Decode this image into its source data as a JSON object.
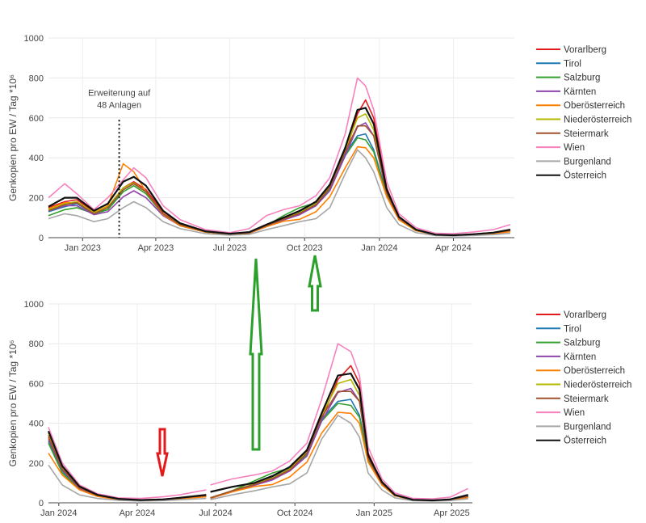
{
  "chart_data": [
    {
      "type": "line",
      "title": "",
      "ylabel": "Genkopien pro EW / Tag *10⁶",
      "ylim": [
        0,
        1000
      ],
      "yticks": [
        "0",
        "200",
        "400",
        "600",
        "800",
        "1000"
      ],
      "xlim": [
        "2022-11-20",
        "2024-06-15"
      ],
      "xticks": [
        {
          "date": "2023-01-01",
          "label": "Jan 2023"
        },
        {
          "date": "2023-04-01",
          "label": "Apr 2023"
        },
        {
          "date": "2023-07-01",
          "label": "Jul 2023"
        },
        {
          "date": "2023-10-01",
          "label": "Oct 2023"
        },
        {
          "date": "2024-01-01",
          "label": "Jan 2024"
        },
        {
          "date": "2024-04-01",
          "label": "Apr 2024"
        }
      ],
      "annotation": {
        "line1": "Erweiterung auf",
        "line2": "48 Anlagen",
        "date": "2023-02-15"
      },
      "legend_position": "right",
      "grid": true,
      "x_dates": [
        "2022-11-20",
        "2022-12-10",
        "2022-12-25",
        "2023-01-15",
        "2023-02-01",
        "2023-02-20",
        "2023-03-05",
        "2023-03-20",
        "2023-04-10",
        "2023-05-01",
        "2023-06-01",
        "2023-07-01",
        "2023-07-25",
        "2023-08-15",
        "2023-09-05",
        "2023-09-25",
        "2023-10-15",
        "2023-11-01",
        "2023-11-20",
        "2023-12-05",
        "2023-12-15",
        "2023-12-25",
        "2024-01-10",
        "2024-01-25",
        "2024-02-15",
        "2024-03-10",
        "2024-04-01",
        "2024-04-25",
        "2024-05-20",
        "2024-06-10"
      ],
      "series": [
        {
          "name": "Vorarlberg",
          "color": "#e31a1c",
          "values": [
            150,
            180,
            190,
            130,
            150,
            250,
            280,
            240,
            130,
            70,
            30,
            20,
            25,
            60,
            90,
            120,
            160,
            240,
            420,
            620,
            690,
            600,
            250,
            100,
            40,
            15,
            12,
            18,
            25,
            40
          ]
        },
        {
          "name": "Tirol",
          "color": "#1f78b4",
          "values": [
            130,
            155,
            170,
            120,
            140,
            240,
            270,
            230,
            120,
            65,
            30,
            18,
            25,
            60,
            95,
            130,
            170,
            250,
            420,
            510,
            520,
            440,
            220,
            95,
            38,
            14,
            12,
            16,
            22,
            35
          ]
        },
        {
          "name": "Salzburg",
          "color": "#33a02c",
          "values": [
            110,
            140,
            150,
            120,
            140,
            230,
            260,
            220,
            115,
            60,
            28,
            18,
            25,
            60,
            110,
            150,
            175,
            240,
            410,
            500,
            490,
            430,
            210,
            90,
            35,
            14,
            11,
            15,
            20,
            32
          ]
        },
        {
          "name": "Kärnten",
          "color": "#8e44ad",
          "values": [
            135,
            160,
            160,
            115,
            130,
            205,
            235,
            200,
            110,
            60,
            28,
            17,
            22,
            55,
            88,
            115,
            160,
            235,
            410,
            555,
            575,
            510,
            225,
            95,
            36,
            14,
            12,
            16,
            22,
            34
          ]
        },
        {
          "name": "Oberösterreich",
          "color": "#ff7f00",
          "values": [
            145,
            175,
            175,
            125,
            160,
            370,
            330,
            230,
            115,
            60,
            28,
            17,
            23,
            55,
            82,
            92,
            130,
            205,
            350,
            455,
            450,
            400,
            205,
            90,
            35,
            14,
            11,
            15,
            20,
            30
          ]
        },
        {
          "name": "Niederösterreich",
          "color": "#b5b800",
          "values": [
            140,
            170,
            180,
            125,
            155,
            250,
            275,
            230,
            120,
            65,
            30,
            19,
            25,
            60,
            95,
            125,
            170,
            260,
            440,
            600,
            620,
            540,
            230,
            100,
            38,
            15,
            12,
            17,
            24,
            38
          ]
        },
        {
          "name": "Steiermark",
          "color": "#a0522d",
          "values": [
            135,
            165,
            175,
            120,
            150,
            240,
            270,
            230,
            120,
            65,
            30,
            19,
            25,
            60,
            92,
            122,
            165,
            250,
            430,
            560,
            560,
            510,
            225,
            98,
            38,
            15,
            12,
            17,
            24,
            36
          ]
        },
        {
          "name": "Wien",
          "color": "#f781bf",
          "values": [
            200,
            270,
            220,
            140,
            200,
            290,
            350,
            300,
            160,
            90,
            40,
            25,
            45,
            110,
            140,
            160,
            210,
            300,
            520,
            800,
            760,
            640,
            280,
            120,
            50,
            22,
            20,
            28,
            40,
            65
          ]
        },
        {
          "name": "Burgenland",
          "color": "#a6a6a6",
          "values": [
            95,
            120,
            110,
            80,
            95,
            150,
            180,
            150,
            80,
            45,
            20,
            12,
            16,
            40,
            60,
            80,
            95,
            150,
            320,
            440,
            400,
            330,
            150,
            65,
            25,
            10,
            8,
            11,
            15,
            22
          ]
        },
        {
          "name": "Österreich",
          "color": "#111111",
          "values": [
            155,
            200,
            200,
            135,
            170,
            280,
            305,
            260,
            135,
            72,
            32,
            20,
            28,
            65,
            100,
            135,
            180,
            265,
            450,
            640,
            650,
            570,
            240,
            105,
            40,
            15,
            12,
            17,
            25,
            40
          ]
        }
      ]
    },
    {
      "type": "line",
      "title": "",
      "ylabel": "Genkopien pro EW / Tag *10⁶",
      "ylim": [
        0,
        1000
      ],
      "yticks": [
        "0",
        "200",
        "400",
        "600",
        "800",
        "1000"
      ],
      "xlim": [
        "2023-12-20",
        "2025-04-25"
      ],
      "xticks": [
        {
          "date": "2024-01-01",
          "label": "Jan 2024"
        },
        {
          "date": "2024-04-01",
          "label": "Apr 2024"
        },
        {
          "date": "2024-07-01",
          "label": "Jul 2024"
        },
        {
          "date": "2024-10-01",
          "label": "Oct 2024"
        },
        {
          "date": "2025-01-01",
          "label": "Jan 2025"
        },
        {
          "date": "2025-04-01",
          "label": "Apr 2025"
        }
      ],
      "legend_position": "right",
      "grid": true,
      "segments": [
        {
          "x_dates": [
            "2023-12-20",
            "2024-01-05",
            "2024-01-25",
            "2024-02-15",
            "2024-03-10",
            "2024-04-05",
            "2024-05-01",
            "2024-05-20",
            "2024-06-20"
          ],
          "series_values": {
            "Vorarlberg": [
              340,
              180,
              80,
              40,
              20,
              15,
              18,
              25,
              40
            ],
            "Tirol": [
              310,
              160,
              70,
              35,
              18,
              12,
              15,
              22,
              35
            ],
            "Salzburg": [
              300,
              150,
              68,
              33,
              17,
              12,
              15,
              20,
              32
            ],
            "Kärnten": [
              320,
              165,
              72,
              36,
              18,
              13,
              16,
              22,
              34
            ],
            "Oberösterreich": [
              250,
              140,
              65,
              32,
              16,
              12,
              14,
              20,
              30
            ],
            "Niederösterreich": [
              350,
              180,
              80,
              40,
              20,
              14,
              17,
              24,
              38
            ],
            "Steiermark": [
              330,
              170,
              75,
              38,
              19,
              13,
              17,
              24,
              36
            ],
            "Wien": [
              380,
              200,
              90,
              45,
              25,
              22,
              30,
              40,
              65
            ],
            "Burgenland": [
              190,
              90,
              40,
              22,
              12,
              9,
              11,
              15,
              22
            ],
            "Österreich": [
              360,
              185,
              82,
              40,
              20,
              14,
              17,
              25,
              40
            ]
          }
        },
        {
          "x_dates": [
            "2024-06-25",
            "2024-07-20",
            "2024-08-15",
            "2024-09-05",
            "2024-09-25",
            "2024-10-15",
            "2024-11-01",
            "2024-11-20",
            "2024-12-05",
            "2024-12-15",
            "2024-12-25",
            "2025-01-10",
            "2025-01-25",
            "2025-02-15",
            "2025-03-10",
            "2025-03-30",
            "2025-04-20"
          ],
          "series_values": {
            "Vorarlberg": [
              25,
              60,
              90,
              120,
              160,
              240,
              420,
              620,
              690,
              600,
              250,
              100,
              40,
              15,
              12,
              18,
              35
            ],
            "Tirol": [
              25,
              60,
              95,
              130,
              170,
              250,
              420,
              510,
              520,
              440,
              220,
              95,
              38,
              14,
              12,
              16,
              30
            ],
            "Salzburg": [
              25,
              60,
              110,
              150,
              175,
              240,
              410,
              500,
              490,
              430,
              210,
              90,
              35,
              14,
              11,
              15,
              28
            ],
            "Kärnten": [
              22,
              55,
              88,
              115,
              160,
              235,
              410,
              555,
              575,
              510,
              225,
              95,
              36,
              14,
              12,
              16,
              30
            ],
            "Oberösterreich": [
              23,
              55,
              82,
              92,
              130,
              205,
              350,
              455,
              450,
              400,
              205,
              90,
              35,
              14,
              11,
              15,
              26
            ],
            "Niederösterreich": [
              25,
              60,
              95,
              125,
              170,
              260,
              440,
              600,
              620,
              540,
              230,
              100,
              38,
              15,
              12,
              17,
              34
            ],
            "Steiermark": [
              25,
              60,
              92,
              122,
              165,
              250,
              430,
              560,
              560,
              510,
              225,
              98,
              38,
              15,
              12,
              17,
              32
            ],
            "Wien": [
              90,
              120,
              140,
              160,
              210,
              300,
              520,
              800,
              760,
              640,
              280,
              120,
              50,
              22,
              20,
              28,
              72
            ],
            "Burgenland": [
              16,
              40,
              60,
              80,
              95,
              150,
              320,
              440,
              400,
              330,
              150,
              65,
              25,
              10,
              8,
              11,
              20
            ],
            "Österreich": [
              55,
              80,
              100,
              135,
              180,
              265,
              450,
              640,
              650,
              570,
              240,
              105,
              40,
              15,
              12,
              17,
              40
            ]
          }
        }
      ],
      "series": [
        {
          "name": "Vorarlberg",
          "color": "#e31a1c"
        },
        {
          "name": "Tirol",
          "color": "#1f78b4"
        },
        {
          "name": "Salzburg",
          "color": "#33a02c"
        },
        {
          "name": "Kärnten",
          "color": "#8e44ad"
        },
        {
          "name": "Oberösterreich",
          "color": "#ff7f00"
        },
        {
          "name": "Niederösterreich",
          "color": "#b5b800"
        },
        {
          "name": "Steiermark",
          "color": "#a0522d"
        },
        {
          "name": "Wien",
          "color": "#f781bf"
        },
        {
          "name": "Burgenland",
          "color": "#a6a6a6"
        },
        {
          "name": "Österreich",
          "color": "#111111"
        }
      ]
    }
  ],
  "arrows": [
    {
      "name": "green-arrow-up-tall",
      "color": "#2ca02c",
      "direction": "up"
    },
    {
      "name": "green-arrow-up-short",
      "color": "#2ca02c",
      "direction": "up"
    },
    {
      "name": "red-arrow-down",
      "color": "#e31a1c",
      "direction": "down"
    }
  ]
}
